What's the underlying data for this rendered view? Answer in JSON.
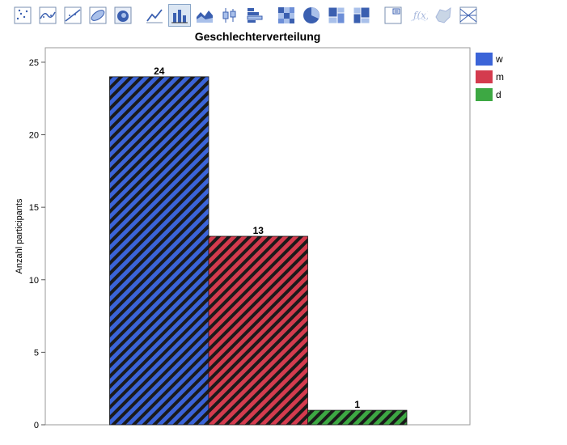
{
  "toolbar": {
    "tools": [
      {
        "name": "scatter-icon",
        "active": false
      },
      {
        "name": "scatter-smooth-icon",
        "active": false
      },
      {
        "name": "scatter-line-fit-icon",
        "active": false
      },
      {
        "name": "ellipse-icon",
        "active": false
      },
      {
        "name": "contour-icon",
        "active": false
      },
      {
        "name": "line-chart-icon",
        "active": false
      },
      {
        "name": "bar-chart-icon",
        "active": true
      },
      {
        "name": "area-chart-icon",
        "active": false
      },
      {
        "name": "box-plot-icon",
        "active": false
      },
      {
        "name": "histogram-icon",
        "active": false
      },
      {
        "name": "heatmap-icon",
        "active": false
      },
      {
        "name": "pie-chart-icon",
        "active": false
      },
      {
        "name": "treemap-icon",
        "active": false
      },
      {
        "name": "mosaic-icon",
        "active": false
      },
      {
        "name": "caption-box-icon",
        "active": false
      },
      {
        "name": "formula-icon",
        "active": false
      },
      {
        "name": "map-shape-icon",
        "active": false
      },
      {
        "name": "parallel-icon",
        "active": false
      }
    ]
  },
  "colors": {
    "w": "#3b64d8",
    "m": "#d43b4e",
    "d": "#3da843",
    "stripe": "#1a1a1a"
  },
  "chart_data": {
    "type": "bar",
    "title": "Geschlechterverteilung",
    "xlabel": "",
    "ylabel": "Anzahl participants",
    "ylim": [
      0,
      26
    ],
    "yticks": [
      0,
      5,
      10,
      15,
      20,
      25
    ],
    "grid": false,
    "legend_position": "right",
    "categories": [
      "w",
      "m",
      "d"
    ],
    "values": [
      24,
      13,
      1
    ],
    "data_labels": [
      "24",
      "13",
      "1"
    ]
  }
}
